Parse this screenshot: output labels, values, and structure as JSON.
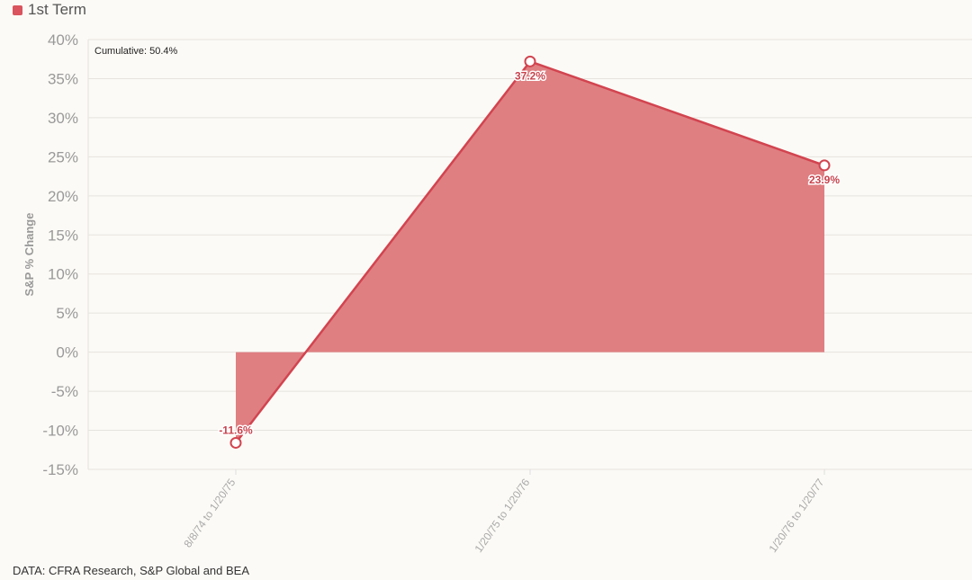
{
  "legend": {
    "label": "1st Term",
    "color": "#d9545e"
  },
  "source": "DATA: CFRA Research, S&P Global and BEA",
  "chart_data": {
    "type": "area",
    "categories": [
      "8/8/74 to 1/20/75",
      "1/20/75 to 1/20/76",
      "1/20/76 to 1/20/77"
    ],
    "series": [
      {
        "name": "1st Term",
        "values": [
          -11.6,
          37.2,
          23.9
        ],
        "labels": [
          "-11.6%",
          "37.2%",
          "23.9%"
        ]
      }
    ],
    "ylabel": "S&P % Change",
    "xlabel": "",
    "ylim": [
      -15,
      40
    ],
    "yticks": [
      40,
      35,
      30,
      25,
      20,
      15,
      10,
      5,
      0,
      -5,
      -10,
      -15
    ],
    "ytick_labels": [
      "40%",
      "35%",
      "30%",
      "25%",
      "20%",
      "15%",
      "10%",
      "5%",
      "0%",
      "-5%",
      "-10%",
      "-15%"
    ],
    "annotation": "Cumulative: 50.4%",
    "grid": true,
    "line_color": "#d2444f",
    "fill_color": "#df7f82"
  }
}
